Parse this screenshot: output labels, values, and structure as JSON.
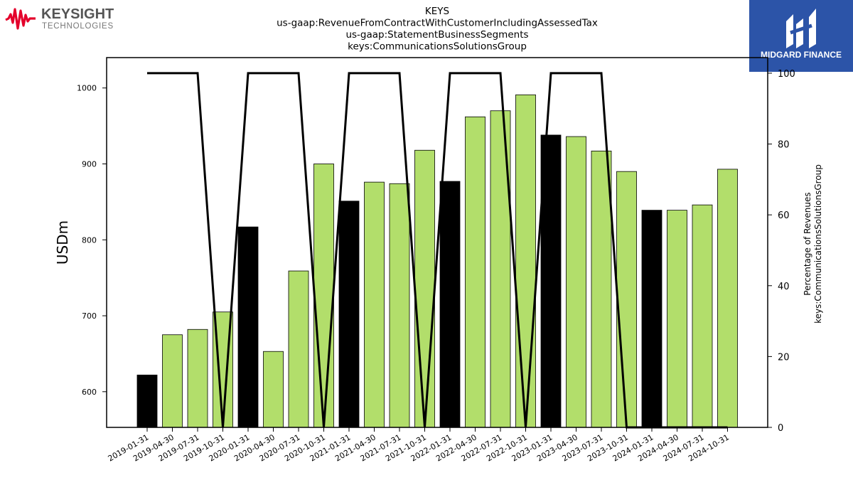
{
  "header": {
    "brand_left": {
      "name": "KEYSIGHT",
      "sub": "TECHNOLOGIES",
      "color": "#e4002b"
    },
    "brand_right": {
      "name": "MIDGARD FINANCE",
      "bg": "#2c54a8"
    }
  },
  "chart_data": {
    "type": "bar",
    "title_lines": [
      "KEYS",
      "us-gaap:RevenueFromContractWithCustomerIncludingAssessedTax",
      "us-gaap:StatementBusinessSegments",
      "keys:CommunicationsSolutionsGroup"
    ],
    "ylabel": "USDm",
    "ylabel_right": [
      "Percentage of Revenues",
      "keys:CommunicationsSolutionsGroup"
    ],
    "ylim": [
      553,
      1040
    ],
    "ylim_right": [
      0,
      104.4
    ],
    "yticks": [
      600,
      700,
      800,
      900,
      1000
    ],
    "yticks_right": [
      0,
      20,
      40,
      60,
      80,
      100
    ],
    "categories": [
      "2019-01-31",
      "2019-04-30",
      "2019-07-31",
      "2019-10-31",
      "2020-01-31",
      "2020-04-30",
      "2020-07-31",
      "2020-10-31",
      "2021-01-31",
      "2021-04-30",
      "2021-07-31",
      "2021-10-31",
      "2022-01-31",
      "2022-04-30",
      "2022-07-31",
      "2022-10-31",
      "2023-01-31",
      "2023-04-30",
      "2023-07-31",
      "2023-10-31",
      "2024-01-31",
      "2024-04-30",
      "2024-07-31",
      "2024-10-31"
    ],
    "series": [
      {
        "type": "bar",
        "values": [
          622,
          675,
          682,
          705,
          817,
          653,
          759,
          900,
          851,
          876,
          874,
          918,
          877,
          962,
          970,
          991,
          938,
          936,
          917,
          890,
          839,
          839,
          846,
          893
        ],
        "highlight": [
          true,
          false,
          false,
          false,
          true,
          false,
          false,
          false,
          true,
          false,
          false,
          false,
          true,
          false,
          false,
          false,
          true,
          false,
          false,
          false,
          true,
          false,
          false,
          false
        ],
        "colors": {
          "normal": "#b2de6b",
          "highlight": "#000000"
        }
      },
      {
        "type": "line",
        "axis": "right",
        "values": [
          100,
          100,
          100,
          0,
          100,
          100,
          100,
          0,
          100,
          100,
          100,
          0,
          100,
          100,
          100,
          0,
          100,
          100,
          100,
          0,
          0,
          0,
          0,
          0
        ],
        "color": "#000000"
      }
    ]
  }
}
